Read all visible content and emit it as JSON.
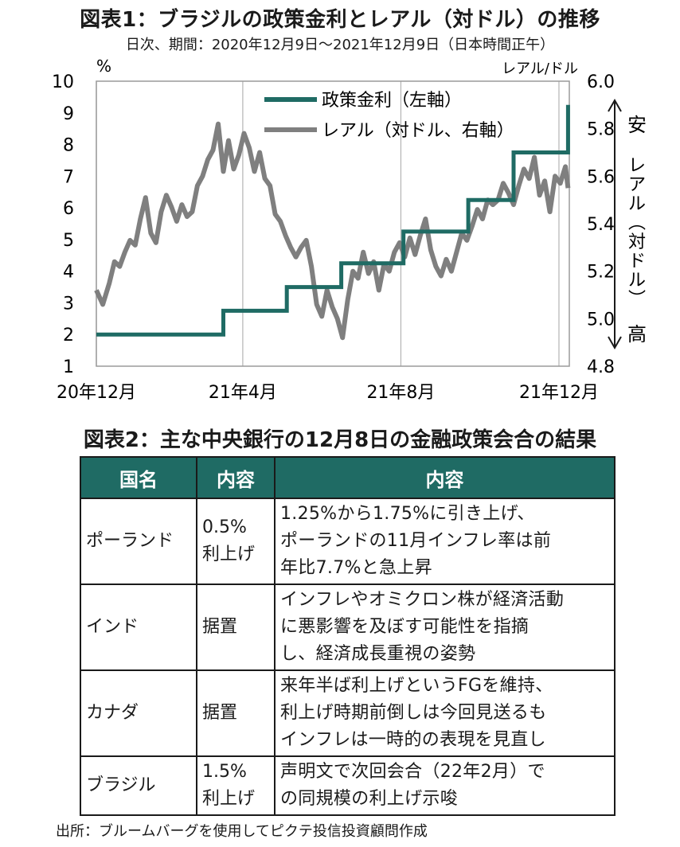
{
  "figure1": {
    "title": "図表1：ブラジルの政策金利とレアル（対ドル）の推移",
    "subtitle": "日次、期間：2020年12月9日～2021年12月9日（日本時間正午）"
  },
  "chart_data": {
    "type": "line",
    "left_axis_unit": "%",
    "right_axis_unit": "レアル/ドル",
    "ylim_left": [
      1,
      10
    ],
    "yticks_left": [
      "1",
      "2",
      "3",
      "4",
      "5",
      "6",
      "7",
      "8",
      "9",
      "10"
    ],
    "ylim_right": [
      4.8,
      6.0
    ],
    "yticks_right": [
      "4.8",
      "5.0",
      "5.2",
      "5.4",
      "5.6",
      "5.8",
      "6.0"
    ],
    "xlim": [
      0,
      365
    ],
    "xticks": [
      {
        "day": 0,
        "label": "20年12月"
      },
      {
        "day": 113,
        "label": "21年4月"
      },
      {
        "day": 235,
        "label": "21年8月"
      },
      {
        "day": 357,
        "label": "21年12月"
      }
    ],
    "right_axis_note": {
      "top": "安",
      "middle": "レアル（対ドル）",
      "bottom": "高"
    },
    "colors": {
      "policy_rate": "#1f6b64",
      "real": "#7f7f7f"
    },
    "series": [
      {
        "name": "政策金利（左軸）",
        "axis": "left",
        "step": true,
        "x": [
          0,
          98,
          98,
          147,
          147,
          189,
          189,
          237,
          237,
          287,
          287,
          322,
          322,
          364,
          364
        ],
        "values": [
          2.0,
          2.0,
          2.75,
          2.75,
          3.5,
          3.5,
          4.25,
          4.25,
          5.25,
          5.25,
          6.25,
          6.25,
          7.75,
          7.75,
          9.25
        ]
      },
      {
        "name": "レアル（対ドル、右軸）",
        "axis": "right",
        "x": [
          0,
          5,
          10,
          14,
          18,
          22,
          26,
          30,
          34,
          38,
          42,
          46,
          50,
          54,
          58,
          62,
          66,
          70,
          74,
          78,
          82,
          86,
          90,
          94,
          98,
          102,
          106,
          110,
          114,
          118,
          122,
          126,
          130,
          134,
          138,
          142,
          146,
          150,
          154,
          158,
          162,
          166,
          170,
          174,
          178,
          182,
          186,
          190,
          194,
          198,
          202,
          206,
          210,
          214,
          218,
          222,
          226,
          230,
          234,
          238,
          242,
          246,
          250,
          254,
          258,
          262,
          266,
          270,
          274,
          278,
          282,
          286,
          290,
          294,
          298,
          302,
          306,
          310,
          314,
          318,
          322,
          326,
          330,
          334,
          338,
          342,
          346,
          350,
          354,
          358,
          362,
          364
        ],
        "values": [
          5.12,
          5.06,
          5.15,
          5.24,
          5.22,
          5.28,
          5.33,
          5.31,
          5.42,
          5.51,
          5.36,
          5.32,
          5.45,
          5.52,
          5.47,
          5.41,
          5.48,
          5.43,
          5.45,
          5.56,
          5.6,
          5.67,
          5.71,
          5.82,
          5.62,
          5.75,
          5.63,
          5.69,
          5.78,
          5.72,
          5.62,
          5.7,
          5.59,
          5.56,
          5.44,
          5.41,
          5.35,
          5.3,
          5.26,
          5.3,
          5.33,
          5.22,
          5.06,
          5.01,
          5.12,
          5.05,
          5.0,
          4.92,
          5.08,
          5.2,
          5.17,
          5.28,
          5.19,
          5.24,
          5.12,
          5.23,
          5.2,
          5.28,
          5.32,
          5.26,
          5.34,
          5.27,
          5.35,
          5.42,
          5.29,
          5.22,
          5.18,
          5.25,
          5.2,
          5.28,
          5.36,
          5.33,
          5.39,
          5.46,
          5.42,
          5.5,
          5.48,
          5.5,
          5.57,
          5.53,
          5.48,
          5.56,
          5.63,
          5.59,
          5.68,
          5.52,
          5.58,
          5.45,
          5.6,
          5.57,
          5.64,
          5.55
        ]
      }
    ]
  },
  "figure2": {
    "title": "図表2：主な中央銀行の12月8日の金融政策会合の結果",
    "headers": [
      "国名",
      "内容",
      "内容"
    ],
    "rows": [
      {
        "country": "ポーランド",
        "stance": [
          "0.5%",
          "利上げ"
        ],
        "detail": [
          "1.25%から1.75%に引き上げ、",
          "ポーランドの11月インフレ率は前",
          "年比7.7%と急上昇"
        ]
      },
      {
        "country": "インド",
        "stance": [
          "据置"
        ],
        "detail": [
          "インフレやオミクロン株が経済活動",
          "に悪影響を及ぼす可能性を指摘",
          "し、経済成長重視の姿勢"
        ]
      },
      {
        "country": "カナダ",
        "stance": [
          "据置"
        ],
        "detail": [
          "来年半ば利上げというFGを維持、",
          "利上げ時期前倒しは今回見送るも",
          "インフレは一時的の表現を見直し"
        ]
      },
      {
        "country": "ブラジル",
        "stance": [
          "1.5%",
          "利上げ"
        ],
        "detail": [
          "声明文で次回会合（22年2月）で",
          "の同規模の利上げ示唆"
        ]
      }
    ]
  },
  "source": "出所：ブルームバーグを使用してピクテ投信投資顧問作成"
}
